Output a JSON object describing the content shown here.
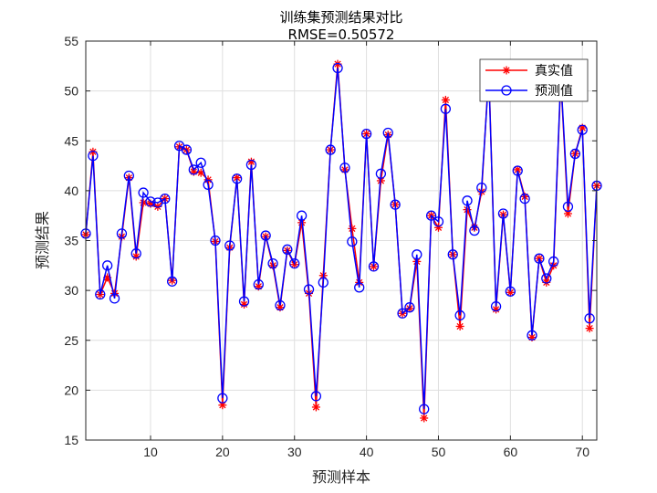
{
  "chart_data": {
    "type": "line",
    "title": "训练集预测结果对比",
    "subtitle": "RMSE=0.50572",
    "xlabel": "预测样本",
    "ylabel": "预测结果",
    "xlim": [
      1,
      72
    ],
    "ylim": [
      15,
      55
    ],
    "xticks": [
      10,
      20,
      30,
      40,
      50,
      60,
      70
    ],
    "yticks": [
      15,
      20,
      25,
      30,
      35,
      40,
      45,
      50,
      55
    ],
    "grid": true,
    "legend_position": "top-right",
    "x": [
      1,
      2,
      3,
      4,
      5,
      6,
      7,
      8,
      9,
      10,
      11,
      12,
      13,
      14,
      15,
      16,
      17,
      18,
      19,
      20,
      21,
      22,
      23,
      24,
      25,
      26,
      27,
      28,
      29,
      30,
      31,
      32,
      33,
      34,
      35,
      36,
      37,
      38,
      39,
      40,
      41,
      42,
      43,
      44,
      45,
      46,
      47,
      48,
      49,
      50,
      51,
      52,
      53,
      54,
      55,
      56,
      57,
      58,
      59,
      60,
      61,
      62,
      63,
      64,
      65,
      66,
      67,
      68,
      69,
      70,
      71,
      72
    ],
    "series": [
      {
        "name": "真实值",
        "color": "#ff0000",
        "marker": "asterisk",
        "values": [
          35.6,
          43.9,
          29.6,
          31.3,
          29.7,
          35.4,
          41.3,
          33.4,
          38.8,
          38.7,
          38.4,
          39.2,
          31.0,
          44.4,
          44.1,
          41.9,
          41.8,
          41.1,
          34.9,
          18.5,
          34.3,
          41.3,
          28.6,
          42.9,
          30.4,
          35.4,
          32.5,
          28.3,
          34.0,
          32.6,
          36.8,
          29.7,
          18.3,
          31.5,
          44.1,
          52.7,
          42.1,
          36.2,
          30.8,
          45.7,
          32.4,
          41.0,
          45.6,
          38.6,
          27.7,
          28.2,
          32.9,
          17.2,
          37.5,
          36.3,
          49.1,
          33.6,
          26.4,
          38.1,
          36.3,
          39.9,
          52.0,
          28.1,
          37.6,
          29.8,
          42.1,
          39.4,
          25.3,
          33.2,
          30.8,
          32.5,
          51.2,
          37.7,
          43.7,
          46.3,
          26.2,
          40.5
        ]
      },
      {
        "name": "预测值",
        "color": "#0000ff",
        "marker": "circle",
        "values": [
          35.7,
          43.5,
          29.6,
          32.5,
          29.2,
          35.7,
          41.5,
          33.7,
          39.8,
          38.9,
          38.8,
          39.2,
          30.9,
          44.5,
          44.1,
          42.1,
          42.8,
          40.6,
          35.0,
          19.2,
          34.5,
          41.2,
          28.9,
          42.6,
          30.6,
          35.5,
          32.7,
          28.5,
          34.1,
          32.7,
          37.5,
          30.1,
          19.4,
          30.8,
          44.1,
          52.3,
          42.3,
          34.9,
          30.3,
          45.7,
          32.4,
          41.7,
          45.8,
          38.6,
          27.7,
          28.3,
          33.6,
          18.1,
          37.5,
          36.9,
          48.2,
          33.6,
          27.5,
          39.0,
          36.0,
          40.3,
          51.6,
          28.4,
          37.7,
          29.9,
          42.0,
          39.2,
          25.5,
          33.2,
          31.2,
          32.9,
          51.4,
          38.4,
          43.7,
          46.1,
          27.2,
          40.5
        ]
      }
    ]
  }
}
